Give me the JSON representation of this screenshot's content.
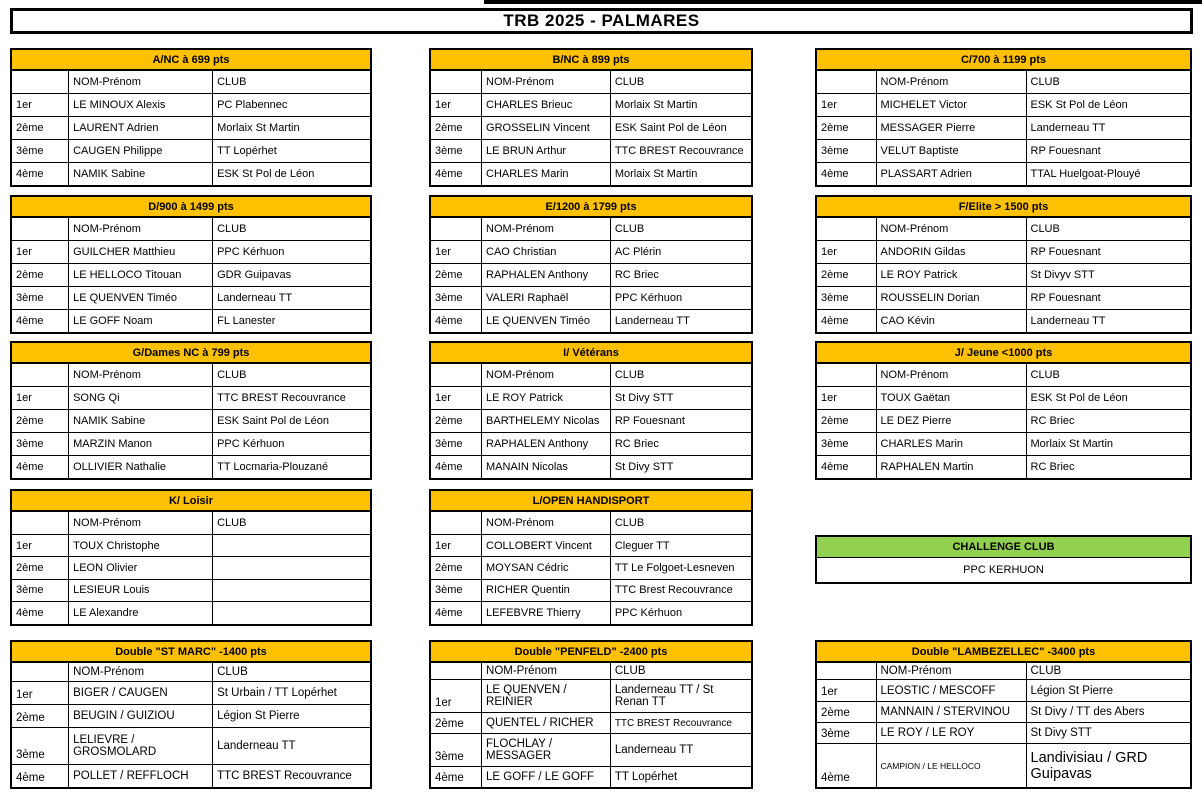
{
  "title": "TRB 2025 - PALMARES",
  "labels": {
    "name_header": "NOM-Prénom",
    "club_header": "CLUB",
    "ranks": [
      "1er",
      "2ème",
      "3ème",
      "4ème"
    ]
  },
  "colors": {
    "header_fill": "#FFC000",
    "challenge_fill": "#92D050",
    "border": "#000000",
    "background": "#FFFFFF"
  },
  "tables": [
    {
      "id": "a-nc-699",
      "title": "A/NC à 699 pts",
      "entries": [
        {
          "name": "LE MINOUX Alexis",
          "club": "PC Plabennec"
        },
        {
          "name": "LAURENT Adrien",
          "club": "Morlaix St Martin"
        },
        {
          "name": "CAUGEN Philippe",
          "club": "TT Lopérhet"
        },
        {
          "name": "NAMIK Sabine",
          "club": "ESK St Pol de Léon"
        }
      ]
    },
    {
      "id": "b-nc-899",
      "title": "B/NC à 899 pts",
      "entries": [
        {
          "name": "CHARLES Brieuc",
          "club": "Morlaix St Martin"
        },
        {
          "name": "GROSSELIN Vincent",
          "club": "ESK Saint Pol de Léon"
        },
        {
          "name": "LE BRUN Arthur",
          "club": "TTC BREST Recouvrance"
        },
        {
          "name": "CHARLES Marin",
          "club": "Morlaix St Martin"
        }
      ]
    },
    {
      "id": "c-700-1199",
      "title": "C/700 à 1199 pts",
      "entries": [
        {
          "name": "MICHELET Victor",
          "club": "ESK St Pol de Léon"
        },
        {
          "name": "MESSAGER Pierre",
          "club": "Landerneau TT"
        },
        {
          "name": "VELUT Baptiste",
          "club": "RP Fouesnant"
        },
        {
          "name": "PLASSART Adrien",
          "club": "TTAL Huelgoat-Plouyé"
        }
      ]
    },
    {
      "id": "d-900-1499",
      "title": "D/900 à 1499 pts",
      "entries": [
        {
          "name": "GUILCHER Matthieu",
          "club": "PPC Kérhuon"
        },
        {
          "name": "LE HELLOCO Titouan",
          "club": "GDR Guipavas"
        },
        {
          "name": "LE QUENVEN Timéo",
          "club": "Landerneau TT"
        },
        {
          "name": "LE GOFF Noam",
          "club": "FL Lanester"
        }
      ]
    },
    {
      "id": "e-1200-1799",
      "title": "E/1200 à 1799 pts",
      "entries": [
        {
          "name": "CAO Christian",
          "club": "AC Plérin"
        },
        {
          "name": "RAPHALEN Anthony",
          "club": "RC Briec"
        },
        {
          "name": "VALERI Raphaël",
          "club": "PPC Kérhuon"
        },
        {
          "name": "LE QUENVEN Timéo",
          "club": "Landerneau TT"
        }
      ]
    },
    {
      "id": "f-elite-1500",
      "title": "F/Elite > 1500 pts",
      "entries": [
        {
          "name": "ANDORIN Gildas",
          "club": "RP Fouesnant"
        },
        {
          "name": "LE ROY Patrick",
          "club": "St Divyv STT"
        },
        {
          "name": "ROUSSELIN Dorian",
          "club": "RP Fouesnant"
        },
        {
          "name": "CAO Kévin",
          "club": "Landerneau TT"
        }
      ]
    },
    {
      "id": "g-dames-nc-799",
      "title": "G/Dames  NC à 799 pts",
      "entries": [
        {
          "name": "SONG Qi",
          "club": "TTC BREST Recouvrance"
        },
        {
          "name": "NAMIK Sabine",
          "club": "ESK Saint Pol de Léon"
        },
        {
          "name": "MARZIN Manon",
          "club": "PPC Kérhuon"
        },
        {
          "name": "OLLIVIER Nathalie",
          "club": "TT Locmaria-Plouzané"
        }
      ]
    },
    {
      "id": "i-veterans",
      "title": "I/ Vétérans",
      "entries": [
        {
          "name": "LE ROY Patrick",
          "club": "St Divy STT"
        },
        {
          "name": "BARTHELEMY Nicolas",
          "club": "RP Fouesnant"
        },
        {
          "name": "RAPHALEN Anthony",
          "club": "RC Briec"
        },
        {
          "name": "MANAIN Nicolas",
          "club": "St Divy STT"
        }
      ]
    },
    {
      "id": "j-jeune-1000",
      "title": "J/ Jeune <1000 pts",
      "entries": [
        {
          "name": "TOUX Gaëtan",
          "club": "ESK St Pol de Léon"
        },
        {
          "name": "LE DEZ Pierre",
          "club": "RC Briec"
        },
        {
          "name": "CHARLES Marin",
          "club": "Morlaix St Martin"
        },
        {
          "name": "RAPHALEN Martin",
          "club": "RC Briec"
        }
      ]
    },
    {
      "id": "k-loisir",
      "title": "K/ Loisir",
      "entries": [
        {
          "name": "TOUX Christophe",
          "club": ""
        },
        {
          "name": "LEON Olivier",
          "club": ""
        },
        {
          "name": "LESIEUR Louis",
          "club": ""
        },
        {
          "name": "LE Alexandre",
          "club": ""
        }
      ]
    },
    {
      "id": "l-open-handisport",
      "title": "L/OPEN HANDISPORT",
      "entries": [
        {
          "name": "COLLOBERT Vincent",
          "club": "Cleguer TT"
        },
        {
          "name": "MOYSAN Cédric",
          "club": "TT Le Folgoet-Lesneven"
        },
        {
          "name": "RICHER Quentin",
          "club": "TTC Brest Recouvrance"
        },
        {
          "name": "LEFEBVRE Thierry",
          "club": "PPC Kérhuon"
        }
      ]
    },
    {
      "id": "double-st-marc",
      "title": "Double \"ST MARC\" -1400 pts",
      "entries": [
        {
          "name": "BIGER / CAUGEN",
          "club": "St Urbain / TT Lopérhet"
        },
        {
          "name": "BEUGIN / GUIZIOU",
          "club": "Légion St Pierre"
        },
        {
          "name": "LELIEVRE / GROSMOLARD",
          "club": "Landerneau TT"
        },
        {
          "name": "POLLET / REFFLOCH",
          "club": "TTC BREST Recouvrance"
        }
      ]
    },
    {
      "id": "double-penfeld",
      "title": "Double \"PENFELD\" -2400 pts",
      "entries": [
        {
          "name": "LE QUENVEN / REINIER",
          "club": "Landerneau TT / St Renan TT"
        },
        {
          "name": "QUENTEL / RICHER",
          "club": "TTC BREST Recouvrance"
        },
        {
          "name": "FLOCHLAY / MESSAGER",
          "club": "Landerneau TT"
        },
        {
          "name": "LE GOFF / LE GOFF",
          "club": "TT Lopérhet"
        }
      ]
    },
    {
      "id": "double-lambezellec",
      "title": "Double \"LAMBEZELLEC\" -3400 pts",
      "entries": [
        {
          "name": "LEOSTIC / MESCOFF",
          "club": "Légion St Pierre"
        },
        {
          "name": "MANNAIN / STERVINOU",
          "club": "St Divy / TT des Abers"
        },
        {
          "name": "LE ROY / LE ROY",
          "club": "St Divy STT"
        },
        {
          "name": "CAMPION / LE HELLOCO",
          "club": "Landivisiau / GRD Guipavas"
        }
      ]
    }
  ],
  "challenge": {
    "title": "CHALLENGE CLUB",
    "winner": "PPC KERHUON"
  }
}
